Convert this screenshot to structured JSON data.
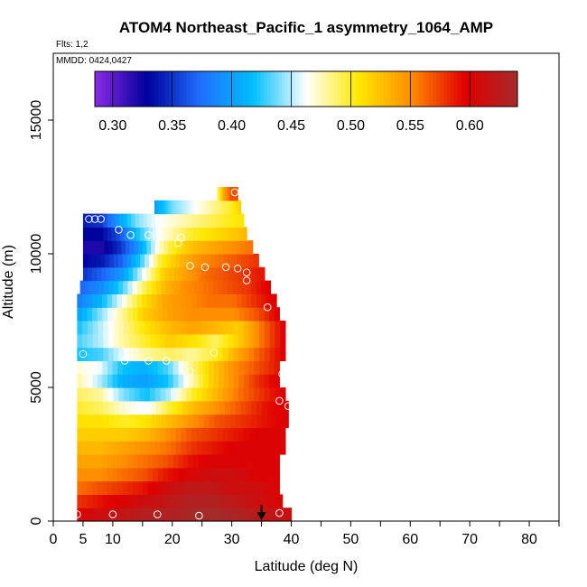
{
  "chart_data": {
    "type": "heatmap",
    "title": "ATOM4 Northeast_Pacific_1 asymmetry_1064_AMP",
    "flights_label": "Flts: 1,2",
    "date_label": "MMDD: 0424,0427",
    "xlabel": "Latitude (deg N)",
    "ylabel": "Altitude (m)",
    "xlim": [
      0,
      85
    ],
    "ylim": [
      0,
      17500
    ],
    "x_tick_labels": [
      "0",
      "5",
      "10",
      "20",
      "30",
      "40",
      "50",
      "60",
      "70",
      "80"
    ],
    "x_tick_values": [
      0,
      5,
      10,
      20,
      30,
      40,
      50,
      60,
      70,
      80
    ],
    "x_minor_ticks": [
      15,
      25,
      35,
      45,
      55,
      65,
      75,
      85
    ],
    "y_tick_labels": [
      "0",
      "5000",
      "10000",
      "15000"
    ],
    "y_tick_values": [
      0,
      5000,
      10000,
      15000
    ],
    "colorbar": {
      "min": 0.285,
      "max": 0.64,
      "tick_labels": [
        "0.30",
        "0.35",
        "0.40",
        "0.45",
        "0.50",
        "0.55",
        "0.60"
      ],
      "tick_values": [
        0.3,
        0.35,
        0.4,
        0.45,
        0.5,
        0.55,
        0.6
      ],
      "colors": [
        "#8a2be2",
        "#00009c",
        "#1e6fff",
        "#00bfff",
        "#ffffff",
        "#ffe800",
        "#ff8c00",
        "#e00000",
        "#a52a2a"
      ]
    },
    "altitude_bands": [
      {
        "alt": [
          0,
          500
        ],
        "lat": [
          4,
          40
        ],
        "values": [
          0.6,
          0.61,
          0.62,
          0.63,
          0.63,
          0.64,
          0.64,
          0.63,
          0.62,
          0.61
        ]
      },
      {
        "alt": [
          500,
          1000
        ],
        "lat": [
          4,
          38.5
        ],
        "values": [
          0.58,
          0.59,
          0.6,
          0.61,
          0.62,
          0.63,
          0.63,
          0.62,
          0.61,
          0.6
        ]
      },
      {
        "alt": [
          1000,
          1500
        ],
        "lat": [
          4,
          38
        ],
        "values": [
          0.56,
          0.57,
          0.58,
          0.59,
          0.61,
          0.62,
          0.62,
          0.61,
          0.61,
          0.6
        ]
      },
      {
        "alt": [
          1500,
          2000
        ],
        "lat": [
          4,
          38
        ],
        "values": [
          0.55,
          0.55,
          0.56,
          0.57,
          0.59,
          0.6,
          0.61,
          0.61,
          0.6,
          0.6
        ]
      },
      {
        "alt": [
          2000,
          2500
        ],
        "lat": [
          4,
          38
        ],
        "values": [
          0.54,
          0.54,
          0.55,
          0.56,
          0.57,
          0.59,
          0.6,
          0.6,
          0.6,
          0.6
        ]
      },
      {
        "alt": [
          2500,
          3000
        ],
        "lat": [
          4,
          39
        ],
        "values": [
          0.53,
          0.53,
          0.54,
          0.55,
          0.56,
          0.58,
          0.59,
          0.6,
          0.6,
          0.6
        ]
      },
      {
        "alt": [
          3000,
          3500
        ],
        "lat": [
          4,
          39
        ],
        "values": [
          0.52,
          0.52,
          0.52,
          0.53,
          0.55,
          0.57,
          0.58,
          0.59,
          0.6,
          0.6
        ]
      },
      {
        "alt": [
          3500,
          4000
        ],
        "lat": [
          4,
          39.5
        ],
        "values": [
          0.51,
          0.51,
          0.5,
          0.51,
          0.53,
          0.55,
          0.57,
          0.58,
          0.59,
          0.6
        ]
      },
      {
        "alt": [
          4000,
          4500
        ],
        "lat": [
          4,
          39.5
        ],
        "values": [
          0.5,
          0.49,
          0.47,
          0.46,
          0.5,
          0.53,
          0.55,
          0.57,
          0.59,
          0.6
        ]
      },
      {
        "alt": [
          4500,
          5000
        ],
        "lat": [
          4,
          39
        ],
        "values": [
          0.49,
          0.48,
          0.44,
          0.42,
          0.45,
          0.5,
          0.53,
          0.56,
          0.58,
          0.6
        ]
      },
      {
        "alt": [
          5000,
          5500
        ],
        "lat": [
          4,
          38
        ],
        "values": [
          0.48,
          0.45,
          0.41,
          0.4,
          0.42,
          0.47,
          0.52,
          0.55,
          0.58,
          0.6
        ]
      },
      {
        "alt": [
          5500,
          6000
        ],
        "lat": [
          4,
          38
        ],
        "values": [
          0.47,
          0.46,
          0.42,
          0.41,
          0.43,
          0.48,
          0.52,
          0.55,
          0.57,
          0.59
        ]
      },
      {
        "alt": [
          6000,
          6500
        ],
        "lat": [
          4,
          39
        ],
        "values": [
          0.42,
          0.43,
          0.46,
          0.48,
          0.49,
          0.48,
          0.5,
          0.54,
          0.57,
          0.6
        ]
      },
      {
        "alt": [
          6500,
          7000
        ],
        "lat": [
          4,
          39
        ],
        "values": [
          0.43,
          0.45,
          0.48,
          0.5,
          0.52,
          0.51,
          0.49,
          0.52,
          0.56,
          0.6
        ]
      },
      {
        "alt": [
          7000,
          7500
        ],
        "lat": [
          4,
          39
        ],
        "values": [
          0.42,
          0.45,
          0.48,
          0.51,
          0.53,
          0.54,
          0.53,
          0.52,
          0.56,
          0.6
        ]
      },
      {
        "alt": [
          7500,
          8000
        ],
        "lat": [
          4,
          38
        ],
        "values": [
          0.4,
          0.44,
          0.48,
          0.52,
          0.54,
          0.55,
          0.55,
          0.55,
          0.57,
          0.6
        ]
      },
      {
        "alt": [
          8000,
          8500
        ],
        "lat": [
          4,
          37.5
        ],
        "values": [
          0.38,
          0.41,
          0.46,
          0.51,
          0.54,
          0.55,
          0.56,
          0.56,
          0.58,
          0.6
        ]
      },
      {
        "alt": [
          8500,
          9000
        ],
        "lat": [
          4.5,
          36.5
        ],
        "values": [
          0.37,
          0.39,
          0.43,
          0.49,
          0.53,
          0.55,
          0.56,
          0.57,
          0.58,
          0.6
        ]
      },
      {
        "alt": [
          9000,
          9500
        ],
        "lat": [
          5,
          35.5
        ],
        "values": [
          0.35,
          0.37,
          0.4,
          0.46,
          0.52,
          0.54,
          0.56,
          0.57,
          0.58,
          0.59
        ]
      },
      {
        "alt": [
          9500,
          10000
        ],
        "lat": [
          5,
          34.5
        ],
        "values": [
          0.33,
          0.34,
          0.37,
          0.43,
          0.5,
          0.53,
          0.55,
          0.56,
          0.57,
          0.58
        ]
      },
      {
        "alt": [
          10000,
          10500
        ],
        "lat": [
          5,
          33.5
        ],
        "values": [
          0.32,
          0.32,
          0.35,
          0.4,
          0.47,
          0.51,
          0.53,
          0.54,
          0.55,
          0.56
        ]
      },
      {
        "alt": [
          10500,
          11000
        ],
        "lat": [
          5,
          32.5
        ],
        "values": [
          0.33,
          0.33,
          0.36,
          0.42,
          0.46,
          0.48,
          0.5,
          0.51,
          0.52,
          0.53
        ]
      },
      {
        "alt": [
          11000,
          11500
        ],
        "lat": [
          5,
          32
        ],
        "values": [
          0.34,
          0.35,
          0.4,
          0.44,
          0.46,
          0.47,
          0.48,
          0.49,
          0.5,
          0.51
        ]
      },
      {
        "alt": [
          11500,
          12000
        ],
        "lat": [
          17,
          31.5
        ],
        "values": [
          0.4,
          0.42,
          0.44,
          0.45,
          0.46,
          0.47,
          0.48,
          0.49,
          0.5,
          0.52
        ]
      },
      {
        "alt": [
          12000,
          12500
        ],
        "lat": [
          27.5,
          31
        ],
        "values": [
          0.48,
          0.5,
          0.52,
          0.54,
          0.55,
          0.56,
          0.57,
          0.57,
          0.57,
          0.57
        ]
      }
    ],
    "observation_points": [
      [
        6,
        11300
      ],
      [
        7,
        11300
      ],
      [
        8,
        11300
      ],
      [
        11,
        10900
      ],
      [
        13,
        10700
      ],
      [
        16,
        10700
      ],
      [
        21,
        10400
      ],
      [
        21.5,
        10600
      ],
      [
        23,
        9550
      ],
      [
        25.5,
        9500
      ],
      [
        29,
        9500
      ],
      [
        31,
        9450
      ],
      [
        32.5,
        9300
      ],
      [
        32.5,
        9000
      ],
      [
        30.5,
        12300
      ],
      [
        5,
        6250
      ],
      [
        12,
        6000
      ],
      [
        16,
        6000
      ],
      [
        19,
        6000
      ],
      [
        27,
        6300
      ],
      [
        23,
        5600
      ],
      [
        37.5,
        8700
      ],
      [
        36,
        8000
      ],
      [
        38.5,
        5500
      ],
      [
        38,
        4500
      ],
      [
        39.5,
        4300
      ],
      [
        4,
        250
      ],
      [
        10,
        250
      ],
      [
        17.5,
        250
      ],
      [
        24.5,
        200
      ],
      [
        38,
        300
      ]
    ],
    "marker_lat": 35
  }
}
